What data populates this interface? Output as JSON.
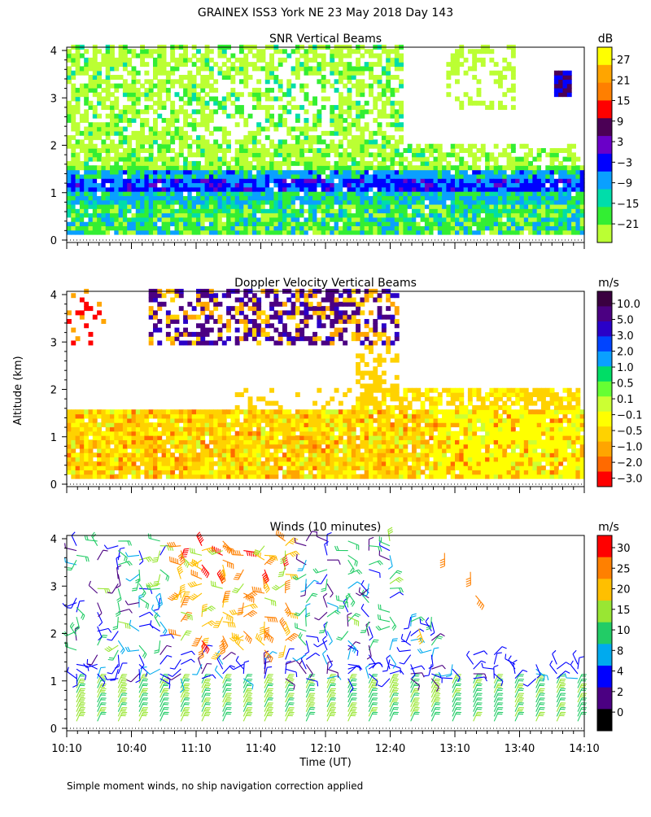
{
  "title": "GRAINEX ISS3 York NE  23 May 2018 Day 143",
  "y_axis_label": "Altitude (km)",
  "x_axis_label": "Time (UT)",
  "footnote": "Simple moment winds, no ship navigation correction applied",
  "chart_data": [
    {
      "type": "heatmap",
      "title": "SNR Vertical Beams",
      "colorbar_unit": "dB",
      "colorbar_labels": [
        "27",
        "21",
        "15",
        "9",
        "3",
        "−3",
        "−9",
        "−15",
        "−21"
      ],
      "colorbar_colors": [
        "#ffff00",
        "#ffa500",
        "#ff7f00",
        "#ff0000",
        "#4b0055",
        "#6a00c8",
        "#0000ff",
        "#0aa0ff",
        "#00ddaa",
        "#33ee33",
        "#bbff33"
      ],
      "x_ticks": [
        "10:10",
        "10:40",
        "11:10",
        "11:40",
        "12:10",
        "12:40",
        "13:10",
        "13:40",
        "14:10"
      ],
      "y_ticks": [
        "0",
        "1",
        "2",
        "3",
        "4"
      ],
      "ylim_km": [
        0,
        4
      ],
      "x_range": [
        "10:10",
        "14:10"
      ]
    },
    {
      "type": "heatmap",
      "title": "Doppler Velocity Vertical Beams",
      "colorbar_unit": "m/s",
      "colorbar_labels": [
        "10.0",
        "5.0",
        "3.0",
        "2.0",
        "1.0",
        "0.5",
        "0.1",
        "−0.1",
        "−0.5",
        "−1.0",
        "−2.0",
        "−3.0"
      ],
      "colorbar_colors": [
        "#3a0040",
        "#4b0082",
        "#2a00c8",
        "#0044ff",
        "#0aa0ff",
        "#00dd66",
        "#66ff33",
        "#ccff33",
        "#ffff00",
        "#ffd200",
        "#ffa500",
        "#ff6a00",
        "#ff0000"
      ],
      "x_ticks": [
        "10:10",
        "10:40",
        "11:10",
        "11:40",
        "12:10",
        "12:40",
        "13:10",
        "13:40",
        "14:10"
      ],
      "y_ticks": [
        "0",
        "1",
        "2",
        "3",
        "4"
      ],
      "ylim_km": [
        0,
        4
      ]
    },
    {
      "type": "scatter",
      "title": "Winds (10 minutes)",
      "colorbar_unit": "m/s",
      "colorbar_labels": [
        "30",
        "25",
        "20",
        "15",
        "10",
        "8",
        "4",
        "2",
        "0"
      ],
      "colorbar_colors": [
        "#ff0000",
        "#ff8000",
        "#ffbf00",
        "#99e633",
        "#22cc66",
        "#00aaee",
        "#0000ff",
        "#4b0082",
        "#000000"
      ],
      "x_ticks": [
        "10:10",
        "10:40",
        "11:10",
        "11:40",
        "12:10",
        "12:40",
        "13:10",
        "13:40",
        "14:10"
      ],
      "y_ticks": [
        "0",
        "1",
        "2",
        "3",
        "4"
      ],
      "ylim_km": [
        0,
        4
      ]
    }
  ]
}
